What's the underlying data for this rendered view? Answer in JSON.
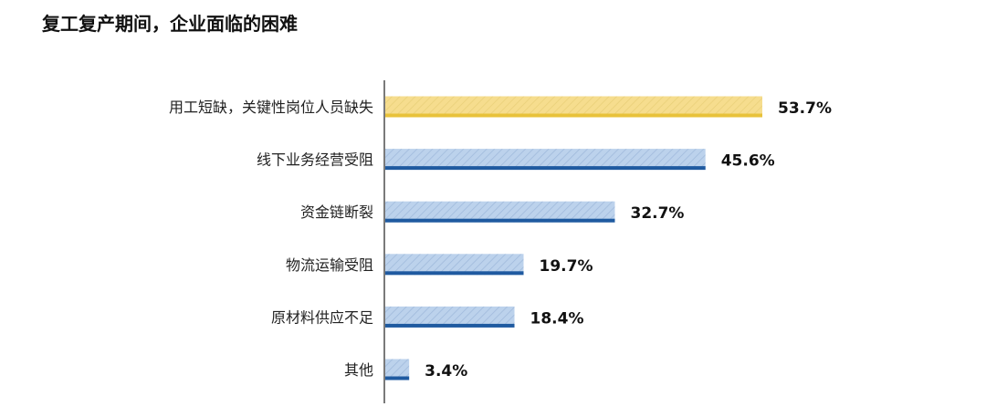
{
  "chart_data": {
    "type": "bar",
    "orientation": "horizontal",
    "title": "复工复产期间，企业面临的困难",
    "categories": [
      "用工短缺，关键性岗位人员缺失",
      "线下业务经营受阻",
      "资金链断裂",
      "物流运输受阻",
      "原材料供应不足",
      "其他"
    ],
    "values": [
      53.7,
      45.6,
      32.7,
      19.7,
      18.4,
      3.4
    ],
    "data_labels": [
      "53.7%",
      "45.6%",
      "32.7%",
      "19.7%",
      "18.4%",
      "3.4%"
    ],
    "xlim": [
      0,
      60
    ],
    "grid": false,
    "highlight_color": "#f6dd8e",
    "highlight_edge": "#e8c23a",
    "bar_color": "#b8cfea",
    "bar_edge": "#1f5aa0"
  }
}
